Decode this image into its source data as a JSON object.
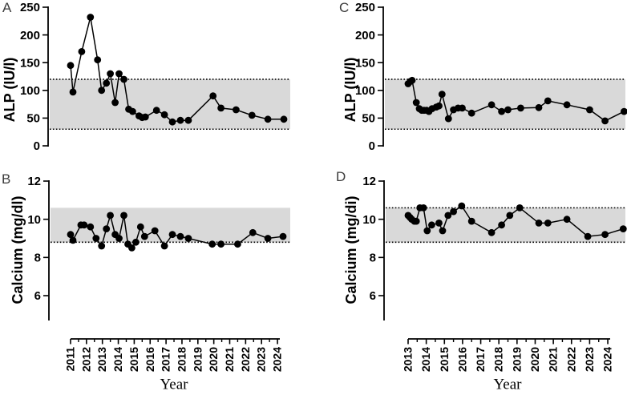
{
  "figure": {
    "background": "#ffffff",
    "band_color": "#d9d9d9",
    "line_color": "#000000",
    "marker_color": "#000000",
    "panel_letter_color": "#3c3c3c",
    "panel_letters": [
      "A",
      "B",
      "C",
      "D"
    ]
  },
  "chart_data": [
    {
      "panel": "A",
      "type": "line",
      "title": "",
      "ylabel": "ALP (IU/l)",
      "xlabel": "Year",
      "ylim": [
        0,
        250
      ],
      "yticks": [
        0,
        50,
        100,
        150,
        200,
        250
      ],
      "xticks": [
        2011,
        2012,
        2013,
        2014,
        2015,
        2016,
        2017,
        2018,
        2019,
        2020,
        2021,
        2022,
        2023,
        2024
      ],
      "grid": false,
      "legend": null,
      "marker": "filled-circle",
      "normal_range": {
        "low": 30,
        "high": 120,
        "dotted_low": true,
        "dotted_high": true
      },
      "points": [
        [
          2011.0,
          145
        ],
        [
          2011.15,
          97
        ],
        [
          2011.7,
          170
        ],
        [
          2012.25,
          232
        ],
        [
          2012.7,
          155
        ],
        [
          2012.95,
          100
        ],
        [
          2013.25,
          113
        ],
        [
          2013.5,
          130
        ],
        [
          2013.8,
          78
        ],
        [
          2014.05,
          130
        ],
        [
          2014.35,
          120
        ],
        [
          2014.65,
          66
        ],
        [
          2014.9,
          62
        ],
        [
          2015.3,
          54
        ],
        [
          2015.5,
          51
        ],
        [
          2015.7,
          52
        ],
        [
          2016.4,
          64
        ],
        [
          2016.9,
          56
        ],
        [
          2017.4,
          43
        ],
        [
          2017.9,
          46
        ],
        [
          2018.4,
          46
        ],
        [
          2019.95,
          90
        ],
        [
          2020.45,
          68
        ],
        [
          2021.4,
          65
        ],
        [
          2022.4,
          55
        ],
        [
          2023.4,
          48
        ],
        [
          2024.4,
          48
        ]
      ]
    },
    {
      "panel": "B",
      "type": "line",
      "title": "",
      "ylabel": "Calcium (mg/dl)",
      "xlabel": "Year",
      "ylim": [
        6,
        12
      ],
      "yticks": [
        6,
        8,
        10,
        12
      ],
      "xticks": [
        2011,
        2012,
        2013,
        2014,
        2015,
        2016,
        2017,
        2018,
        2019,
        2020,
        2021,
        2022,
        2023,
        2024
      ],
      "grid": false,
      "legend": null,
      "marker": "filled-circle",
      "normal_range": {
        "low": 8.8,
        "high": 10.6,
        "dotted_low": true,
        "dotted_high": false
      },
      "points": [
        [
          2011.0,
          9.2
        ],
        [
          2011.15,
          8.9
        ],
        [
          2011.65,
          9.7
        ],
        [
          2011.85,
          9.7
        ],
        [
          2012.25,
          9.6
        ],
        [
          2012.6,
          9.0
        ],
        [
          2012.95,
          8.6
        ],
        [
          2013.25,
          9.5
        ],
        [
          2013.5,
          10.2
        ],
        [
          2013.8,
          9.2
        ],
        [
          2014.05,
          9.0
        ],
        [
          2014.35,
          10.2
        ],
        [
          2014.6,
          8.7
        ],
        [
          2014.85,
          8.5
        ],
        [
          2015.1,
          8.8
        ],
        [
          2015.4,
          9.6
        ],
        [
          2015.65,
          9.1
        ],
        [
          2016.3,
          9.4
        ],
        [
          2016.9,
          8.6
        ],
        [
          2017.4,
          9.2
        ],
        [
          2017.9,
          9.1
        ],
        [
          2018.4,
          9.0
        ],
        [
          2019.9,
          8.7
        ],
        [
          2020.45,
          8.7
        ],
        [
          2021.5,
          8.7
        ],
        [
          2022.45,
          9.3
        ],
        [
          2023.4,
          9.0
        ],
        [
          2024.35,
          9.1
        ]
      ]
    },
    {
      "panel": "C",
      "type": "line",
      "title": "",
      "ylabel": "ALP (IU/l)",
      "xlabel": "Year",
      "ylim": [
        0,
        250
      ],
      "yticks": [
        0,
        50,
        100,
        150,
        200,
        250
      ],
      "xticks": [
        2013,
        2014,
        2015,
        2016,
        2017,
        2018,
        2019,
        2020,
        2021,
        2022,
        2023,
        2024
      ],
      "grid": false,
      "legend": null,
      "marker": "filled-circle",
      "normal_range": {
        "low": 30,
        "high": 120,
        "dotted_low": true,
        "dotted_high": true
      },
      "points": [
        [
          2013.0,
          112
        ],
        [
          2013.12,
          116
        ],
        [
          2013.22,
          118
        ],
        [
          2013.45,
          78
        ],
        [
          2013.62,
          67
        ],
        [
          2013.75,
          64
        ],
        [
          2013.88,
          64
        ],
        [
          2014.02,
          64
        ],
        [
          2014.15,
          62
        ],
        [
          2014.32,
          67
        ],
        [
          2014.55,
          70
        ],
        [
          2014.7,
          72
        ],
        [
          2014.87,
          93
        ],
        [
          2015.22,
          49
        ],
        [
          2015.5,
          65
        ],
        [
          2015.75,
          68
        ],
        [
          2015.98,
          68
        ],
        [
          2016.5,
          59
        ],
        [
          2017.6,
          74
        ],
        [
          2018.15,
          62
        ],
        [
          2018.5,
          65
        ],
        [
          2019.2,
          68
        ],
        [
          2020.2,
          69
        ],
        [
          2020.7,
          81
        ],
        [
          2021.75,
          74
        ],
        [
          2023.0,
          65
        ],
        [
          2023.85,
          45
        ],
        [
          2024.9,
          62
        ]
      ]
    },
    {
      "panel": "D",
      "type": "line",
      "title": "",
      "ylabel": "Calcium (mg/di)",
      "xlabel": "Year",
      "ylim": [
        6,
        12
      ],
      "yticks": [
        6,
        8,
        10,
        12
      ],
      "xticks": [
        2013,
        2014,
        2015,
        2016,
        2017,
        2018,
        2019,
        2020,
        2021,
        2022,
        2023,
        2024
      ],
      "grid": false,
      "legend": null,
      "marker": "filled-circle",
      "normal_range": {
        "low": 8.8,
        "high": 10.6,
        "dotted_low": true,
        "dotted_high": true
      },
      "points": [
        [
          2013.0,
          10.2
        ],
        [
          2013.1,
          10.1
        ],
        [
          2013.2,
          10.0
        ],
        [
          2013.35,
          9.9
        ],
        [
          2013.45,
          9.9
        ],
        [
          2013.65,
          10.6
        ],
        [
          2013.85,
          10.6
        ],
        [
          2014.05,
          9.4
        ],
        [
          2014.3,
          9.7
        ],
        [
          2014.7,
          9.8
        ],
        [
          2014.9,
          9.4
        ],
        [
          2015.2,
          10.2
        ],
        [
          2015.5,
          10.4
        ],
        [
          2015.95,
          10.7
        ],
        [
          2016.5,
          9.9
        ],
        [
          2017.6,
          9.3
        ],
        [
          2018.15,
          9.7
        ],
        [
          2018.6,
          10.2
        ],
        [
          2019.15,
          10.6
        ],
        [
          2020.2,
          9.8
        ],
        [
          2020.7,
          9.8
        ],
        [
          2021.75,
          10.0
        ],
        [
          2022.9,
          9.1
        ],
        [
          2023.85,
          9.2
        ],
        [
          2024.85,
          9.5
        ]
      ]
    }
  ]
}
